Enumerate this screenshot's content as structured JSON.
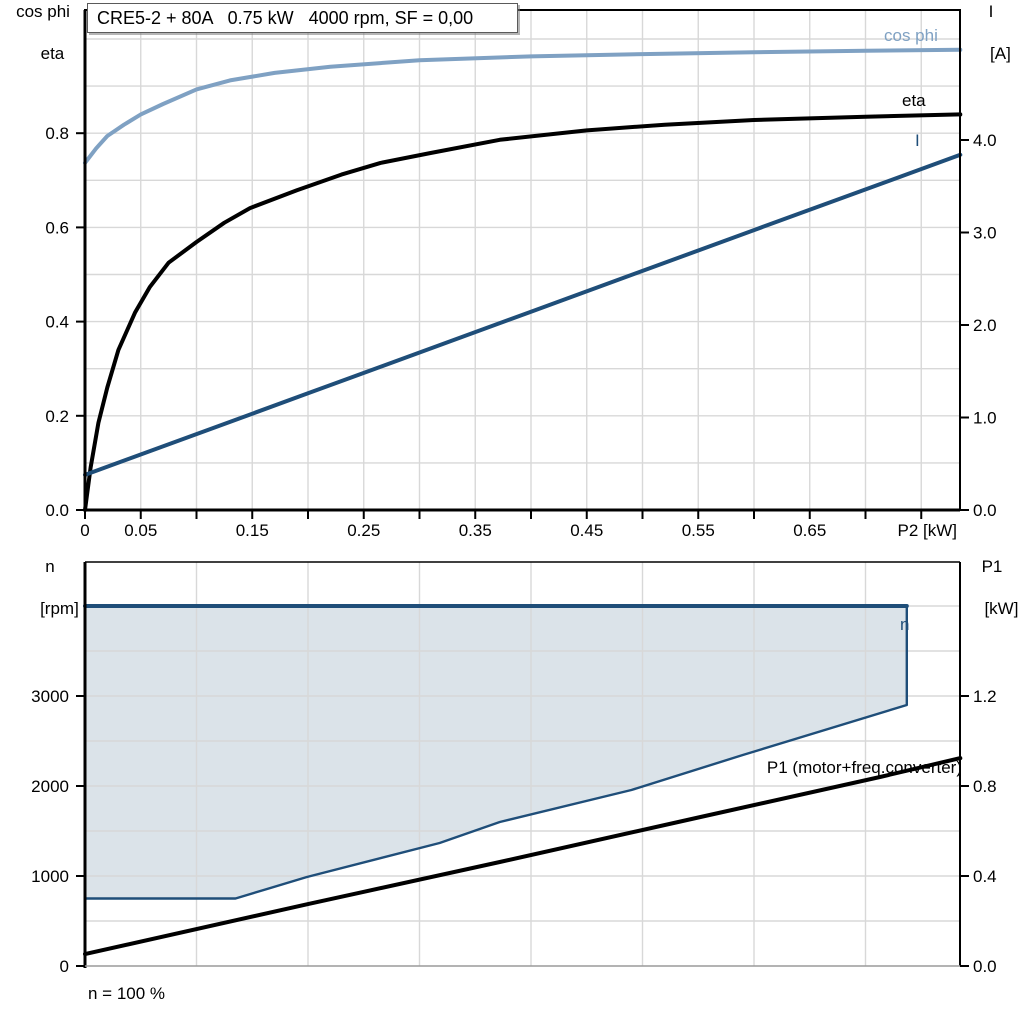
{
  "title_box": {
    "text": "CRE5-2 + 80A   0.75 kW   4000 rpm, SF = 0,00"
  },
  "axis_labels": {
    "upper_left_line1": "cos phi",
    "upper_left_line2": "eta",
    "upper_right_line1": "I",
    "upper_right_line2": "[A]",
    "upper_x": "P2 [kW]",
    "lower_left_line1": "n",
    "lower_left_line2": "[rpm]",
    "lower_right_line1": "P1",
    "lower_right_line2": "[kW]"
  },
  "curve_labels": {
    "cos_phi": "cos phi",
    "eta": "eta",
    "current": "I",
    "speed": "n",
    "p1": "P1 (motor+freq.converter)"
  },
  "footnote": "n = 100 %",
  "colors": {
    "light_blue": "#7fa1c3",
    "dark_blue": "#1f4e79",
    "black": "#000000",
    "grid": "#d8d8d8",
    "envelope_fill": "rgba(31,78,121,0.16)",
    "frame_gray": "#9a9a9a"
  },
  "chart_data": [
    {
      "type": "line",
      "title": "CRE5-2 + 80A   0.75 kW   4000 rpm, SF = 0,00",
      "x_axis": {
        "label": "P2 [kW]",
        "range": [
          0,
          0.785
        ],
        "tick_step": 0.05,
        "grid_step": 0.05,
        "tick_labels": [
          {
            "value": 0,
            "label": "0"
          },
          {
            "value": 0.05,
            "label": "0.05"
          },
          {
            "value": 0.15,
            "label": "0.15"
          },
          {
            "value": 0.25,
            "label": "0.25"
          },
          {
            "value": 0.35,
            "label": "0.35"
          },
          {
            "value": 0.45,
            "label": "0.45"
          },
          {
            "value": 0.55,
            "label": "0.55"
          },
          {
            "value": 0.65,
            "label": "0.65"
          }
        ]
      },
      "y_left": {
        "label": "cos phi / eta",
        "range": [
          0,
          1.06
        ],
        "grid_step": 0.1,
        "ticks": [
          {
            "value": 0,
            "label": "0.0"
          },
          {
            "value": 0.2,
            "label": "0.2"
          },
          {
            "value": 0.4,
            "label": "0.4"
          },
          {
            "value": 0.6,
            "label": "0.6"
          },
          {
            "value": 0.8,
            "label": "0.8"
          }
        ]
      },
      "y_right": {
        "label": "I [A]",
        "range": [
          0,
          5.4
        ],
        "ticks": [
          {
            "value": 0,
            "label": "0.0"
          },
          {
            "value": 1,
            "label": "1.0"
          },
          {
            "value": 2,
            "label": "2.0"
          },
          {
            "value": 3,
            "label": "3.0"
          },
          {
            "value": 4,
            "label": "4.0"
          }
        ]
      },
      "series": [
        {
          "name": "cos phi",
          "axis": "left",
          "color_key": "light_blue",
          "width": 4,
          "points": [
            [
              0,
              0.737
            ],
            [
              0.01,
              0.768
            ],
            [
              0.02,
              0.794
            ],
            [
              0.035,
              0.818
            ],
            [
              0.05,
              0.84
            ],
            [
              0.07,
              0.862
            ],
            [
              0.1,
              0.893
            ],
            [
              0.13,
              0.912
            ],
            [
              0.17,
              0.928
            ],
            [
              0.22,
              0.941
            ],
            [
              0.3,
              0.955
            ],
            [
              0.4,
              0.963
            ],
            [
              0.5,
              0.968
            ],
            [
              0.6,
              0.972
            ],
            [
              0.7,
              0.975
            ],
            [
              0.785,
              0.977
            ]
          ]
        },
        {
          "name": "eta",
          "axis": "left",
          "color_key": "black",
          "width": 4,
          "points": [
            [
              0,
              0
            ],
            [
              0.005,
              0.09
            ],
            [
              0.012,
              0.185
            ],
            [
              0.02,
              0.26
            ],
            [
              0.03,
              0.34
            ],
            [
              0.045,
              0.42
            ],
            [
              0.058,
              0.473
            ],
            [
              0.075,
              0.525
            ],
            [
              0.1,
              0.569
            ],
            [
              0.125,
              0.61
            ],
            [
              0.148,
              0.641
            ],
            [
              0.19,
              0.679
            ],
            [
              0.23,
              0.712
            ],
            [
              0.265,
              0.737
            ],
            [
              0.31,
              0.758
            ],
            [
              0.372,
              0.786
            ],
            [
              0.45,
              0.806
            ],
            [
              0.52,
              0.818
            ],
            [
              0.6,
              0.828
            ],
            [
              0.7,
              0.835
            ],
            [
              0.785,
              0.84
            ]
          ]
        },
        {
          "name": "I",
          "axis": "right",
          "color_key": "dark_blue",
          "width": 4,
          "points": [
            [
              0,
              0.38
            ],
            [
              0.2,
              1.262
            ],
            [
              0.4,
              2.144
            ],
            [
              0.6,
              3.026
            ],
            [
              0.785,
              3.84
            ]
          ]
        }
      ]
    },
    {
      "type": "line+area",
      "x_axis": {
        "label": "(shared with upper chart, unlabeled)",
        "range": [
          0,
          0.785
        ],
        "grid_step": 0.1,
        "tick_labels": []
      },
      "y_left": {
        "label": "n [rpm]",
        "range": [
          0,
          4490
        ],
        "grid_step": 500,
        "ticks": [
          {
            "value": 0,
            "label": "0"
          },
          {
            "value": 1000,
            "label": "1000"
          },
          {
            "value": 2000,
            "label": "2000"
          },
          {
            "value": 3000,
            "label": "3000"
          }
        ]
      },
      "y_right": {
        "label": "P1 [kW]",
        "range": [
          0,
          1.795
        ],
        "ticks": [
          {
            "value": 0,
            "label": "0.0"
          },
          {
            "value": 0.4,
            "label": "0.4"
          },
          {
            "value": 0.8,
            "label": "0.8"
          },
          {
            "value": 1.2,
            "label": "1.2"
          }
        ]
      },
      "series": [
        {
          "name": "n",
          "type": "area",
          "axis": "left",
          "color_key": "dark_blue",
          "fill_key": "envelope_fill",
          "top_width": 4,
          "edge_width": 2.4,
          "points": [
            [
              0,
              4000
            ],
            [
              0.737,
              4000
            ],
            [
              0.737,
              2900
            ],
            [
              0.59,
              2344
            ],
            [
              0.49,
              1956
            ],
            [
              0.372,
              1600
            ],
            [
              0.318,
              1367
            ],
            [
              0.199,
              989
            ],
            [
              0.135,
              750
            ],
            [
              0,
              750
            ]
          ]
        },
        {
          "name": "P1 (motor+freq.converter)",
          "axis": "right",
          "color_key": "black",
          "width": 4,
          "points": [
            [
              0,
              0.053
            ],
            [
              0.2,
              0.275
            ],
            [
              0.372,
              0.462
            ],
            [
              0.55,
              0.66
            ],
            [
              0.713,
              0.84
            ],
            [
              0.785,
              0.924
            ]
          ]
        }
      ],
      "footnote": "n = 100 %"
    }
  ]
}
